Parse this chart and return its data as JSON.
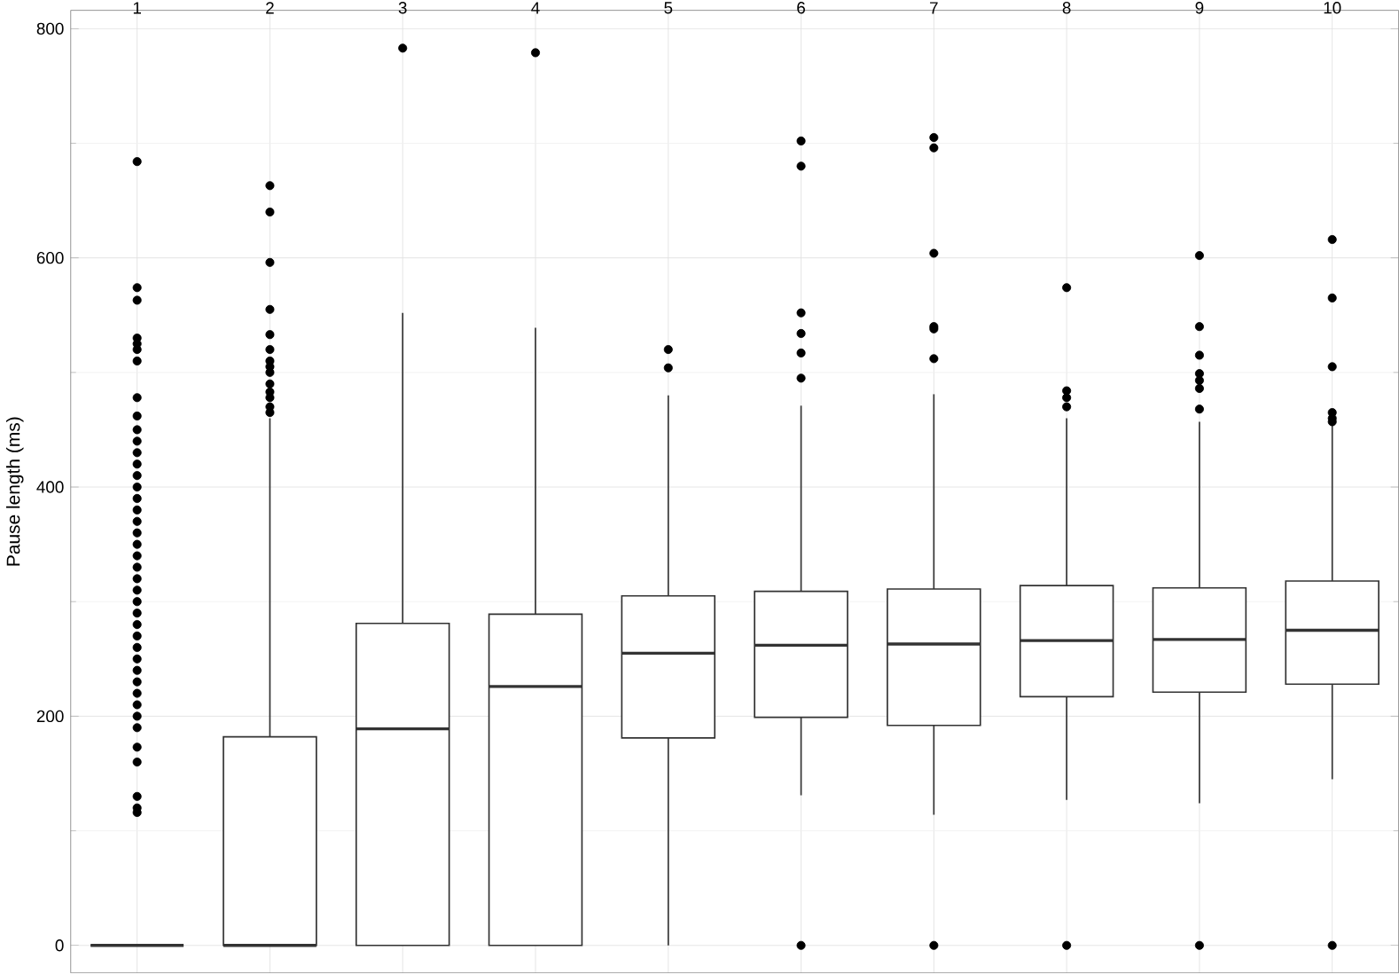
{
  "chart_data": {
    "type": "box",
    "ylabel": "Pause length (ms)",
    "categories": [
      "1",
      "2",
      "3",
      "4",
      "5",
      "6",
      "7",
      "8",
      "9",
      "10"
    ],
    "ylim": [
      -24,
      816
    ],
    "yticks": [
      0,
      200,
      400,
      600,
      800
    ],
    "grid": true,
    "color": "#333333",
    "boxes": [
      {
        "low": 0,
        "q1": 0,
        "median": 0,
        "q3": 0,
        "high": 0,
        "outliers": [
          684,
          574,
          563,
          530,
          525,
          520,
          510,
          478,
          462,
          450,
          440,
          430,
          420,
          410,
          400,
          390,
          380,
          370,
          360,
          350,
          340,
          330,
          320,
          310,
          300,
          290,
          280,
          270,
          260,
          250,
          240,
          230,
          220,
          210,
          200,
          190,
          173,
          160,
          130,
          120,
          116
        ]
      },
      {
        "low": 0,
        "q1": 0,
        "median": 0,
        "q3": 182,
        "high": 460,
        "outliers": [
          663,
          640,
          596,
          555,
          533,
          520,
          510,
          505,
          500,
          490,
          483,
          478,
          470,
          465
        ]
      },
      {
        "low": 0,
        "q1": 0,
        "median": 189,
        "q3": 281,
        "high": 552,
        "outliers": [
          783
        ]
      },
      {
        "low": 0,
        "q1": 0,
        "median": 226,
        "q3": 289,
        "high": 539,
        "outliers": [
          779
        ]
      },
      {
        "low": 0,
        "q1": 181,
        "median": 255,
        "q3": 305,
        "high": 480,
        "outliers": [
          504,
          520
        ]
      },
      {
        "low": 131,
        "q1": 199,
        "median": 262,
        "q3": 309,
        "high": 471,
        "outliers": [
          0,
          495,
          517,
          534,
          552,
          680,
          702
        ]
      },
      {
        "low": 114,
        "q1": 192,
        "median": 263,
        "q3": 311,
        "high": 481,
        "outliers": [
          0,
          512,
          538,
          540,
          604,
          696,
          705
        ]
      },
      {
        "low": 127,
        "q1": 217,
        "median": 266,
        "q3": 314,
        "high": 460,
        "outliers": [
          0,
          470,
          478,
          484,
          574
        ]
      },
      {
        "low": 124,
        "q1": 221,
        "median": 267,
        "q3": 312,
        "high": 457,
        "outliers": [
          0,
          468,
          486,
          493,
          499,
          515,
          540,
          602
        ]
      },
      {
        "low": 145,
        "q1": 228,
        "median": 275,
        "q3": 318,
        "high": 455,
        "outliers": [
          0,
          457,
          460,
          465,
          505,
          565,
          616
        ]
      }
    ]
  }
}
